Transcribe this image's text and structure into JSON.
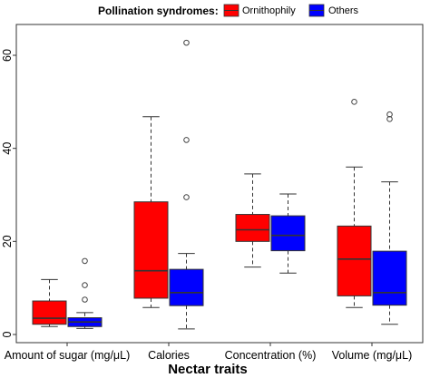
{
  "chart_data": {
    "type": "boxplot",
    "legend": {
      "title": "Pollination syndromes:",
      "position": "top",
      "entries": [
        {
          "name": "Ornithophily",
          "color": "#ff0000"
        },
        {
          "name": "Others",
          "color": "#0000ff"
        }
      ]
    },
    "xlabel": "Nectar traits",
    "ylabel": "",
    "ylim": [
      -1,
      65
    ],
    "yticks": [
      0,
      20,
      40,
      60
    ],
    "categories": [
      "Amount of sugar (mg/μL)",
      "Calories",
      "Concentration (%)",
      "Volume (mg/μL)"
    ],
    "grid": false,
    "series": [
      {
        "name": "Ornithophily",
        "color": "#ff0000",
        "boxes": [
          {
            "whisker_low": 1.7,
            "q1": 2.2,
            "median": 3.5,
            "q3": 7.2,
            "whisker_high": 11.8,
            "outliers": []
          },
          {
            "whisker_low": 5.8,
            "q1": 7.8,
            "median": 13.7,
            "q3": 28.5,
            "whisker_high": 46.8,
            "outliers": []
          },
          {
            "whisker_low": 14.5,
            "q1": 20.0,
            "median": 22.5,
            "q3": 25.8,
            "whisker_high": 34.5,
            "outliers": []
          },
          {
            "whisker_low": 5.8,
            "q1": 8.3,
            "median": 16.2,
            "q3": 23.3,
            "whisker_high": 36.0,
            "outliers": [
              50.0
            ]
          }
        ]
      },
      {
        "name": "Others",
        "color": "#0000ff",
        "boxes": [
          {
            "whisker_low": 1.3,
            "q1": 1.7,
            "median": 2.7,
            "q3": 3.6,
            "whisker_high": 4.7,
            "outliers": [
              7.5,
              10.6,
              15.8
            ]
          },
          {
            "whisker_low": 1.2,
            "q1": 6.2,
            "median": 9.0,
            "q3": 14.0,
            "whisker_high": 17.4,
            "outliers": [
              29.5,
              41.8,
              62.7
            ]
          },
          {
            "whisker_low": 13.2,
            "q1": 18.0,
            "median": 21.3,
            "q3": 25.5,
            "whisker_high": 30.2,
            "outliers": []
          },
          {
            "whisker_low": 2.2,
            "q1": 6.3,
            "median": 9.0,
            "q3": 17.9,
            "whisker_high": 32.8,
            "outliers": [
              46.3,
              47.3
            ]
          }
        ]
      }
    ]
  }
}
